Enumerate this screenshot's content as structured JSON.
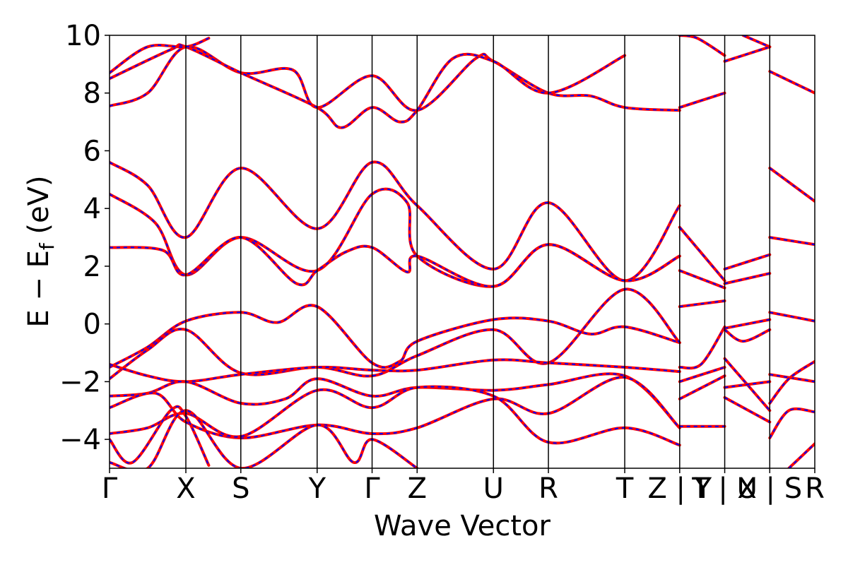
{
  "chart_data": {
    "type": "line",
    "title": "",
    "xlabel": "Wave Vector",
    "ylabel": {
      "base": "E − E",
      "sub": "f",
      "unit": " (eV)"
    },
    "ylim": [
      -5,
      10
    ],
    "yticks": [
      {
        "value": 10,
        "label": "10"
      },
      {
        "value": 8,
        "label": "8"
      },
      {
        "value": 6,
        "label": "6"
      },
      {
        "value": 4,
        "label": "4"
      },
      {
        "value": 2,
        "label": "2"
      },
      {
        "value": 0,
        "label": "0"
      },
      {
        "value": -2,
        "label": "−2"
      },
      {
        "value": -4,
        "label": "−4"
      }
    ],
    "kpoints": [
      {
        "pos": 0.0,
        "label": "Γ"
      },
      {
        "pos": 1.0,
        "label": "X"
      },
      {
        "pos": 1.72,
        "label": "S"
      },
      {
        "pos": 2.72,
        "label": "Y"
      },
      {
        "pos": 3.44,
        "label": "Γ"
      },
      {
        "pos": 4.03,
        "label": "Z"
      },
      {
        "pos": 5.03,
        "label": "U"
      },
      {
        "pos": 5.75,
        "label": "R"
      },
      {
        "pos": 6.75,
        "label": "T"
      },
      {
        "pos": 7.47,
        "label": "Z | Y"
      },
      {
        "pos": 8.06,
        "label": "T | U"
      },
      {
        "pos": 8.65,
        "label": "X | S"
      },
      {
        "pos": 9.24,
        "label": "R"
      }
    ],
    "xlim": [
      0,
      9.24
    ],
    "grid": false,
    "legend": "none",
    "series_style": {
      "color": "#ff0000",
      "overlay_color": "#0000ff",
      "overlay_dash": true
    },
    "bands": [
      {
        "x": [
          0,
          0.5,
          1.0,
          1.72,
          2.72,
          3.44,
          4.03,
          5.03,
          5.75,
          6.75,
          7.47
        ],
        "y": [
          5.6,
          4.8,
          3.0,
          5.4,
          3.3,
          5.6,
          4.1,
          1.9,
          4.2,
          1.5,
          4.1
        ]
      },
      {
        "x": [
          0,
          0.6,
          1.0,
          1.72,
          2.72,
          3.44,
          3.9,
          4.03,
          5.03,
          5.75,
          6.75,
          7.47
        ],
        "y": [
          4.5,
          3.5,
          1.7,
          3.0,
          1.85,
          4.5,
          4.2,
          2.35,
          1.3,
          2.75,
          1.5,
          2.35
        ]
      },
      {
        "x": [
          0,
          0.7,
          1.0,
          1.72,
          2.45,
          2.72,
          3.1,
          3.44,
          3.9,
          4.03,
          5.03,
          5.75,
          6.75,
          7.47
        ],
        "y": [
          2.65,
          2.55,
          1.7,
          3.0,
          1.4,
          1.85,
          2.5,
          2.65,
          1.8,
          2.35,
          1.3,
          2.75,
          1.5,
          2.35
        ]
      },
      {
        "x": [
          0,
          0.5,
          1.0,
          1.72,
          2.4,
          2.72,
          3.44,
          4.03,
          4.8,
          5.03,
          5.75,
          6.3,
          6.75,
          7.47
        ],
        "y": [
          7.55,
          8.0,
          9.6,
          8.7,
          8.8,
          7.5,
          8.6,
          7.4,
          9.2,
          9.1,
          8.0,
          7.9,
          7.5,
          7.4
        ]
      },
      {
        "x": [
          0,
          0.8,
          1.0,
          1.72,
          2.72,
          3.04,
          3.44,
          3.8,
          4.03,
          4.5,
          5.03,
          5.75,
          6.75
        ],
        "y": [
          8.5,
          9.5,
          9.6,
          8.7,
          7.5,
          6.8,
          7.5,
          7.0,
          7.4,
          9.2,
          9.1,
          8.0,
          9.3
        ]
      },
      {
        "x": [
          0,
          0.5,
          1.0,
          1.3
        ],
        "y": [
          8.7,
          9.6,
          9.6,
          9.9
        ]
      },
      {
        "x": [
          0,
          0.5,
          1.0,
          1.72,
          2.2,
          2.72,
          3.44,
          3.8,
          4.03,
          5.03,
          5.75,
          6.3,
          6.75,
          7.47
        ],
        "y": [
          -1.5,
          -0.8,
          0.1,
          0.4,
          0.05,
          0.6,
          -1.35,
          -1.3,
          -0.6,
          0.15,
          0.1,
          -0.35,
          -0.1,
          -0.65
        ]
      },
      {
        "x": [
          0,
          0.5,
          1.0,
          1.72,
          2.72,
          3.44,
          4.03,
          5.03,
          5.75,
          6.75,
          7.47
        ],
        "y": [
          -1.9,
          -0.9,
          -0.2,
          -1.7,
          -1.5,
          -1.8,
          -1.1,
          -0.2,
          -1.35,
          1.2,
          -0.65
        ]
      },
      {
        "x": [
          0,
          0.5,
          1.0,
          1.72,
          2.72,
          3.44,
          4.03,
          5.03,
          5.75,
          6.75,
          7.47
        ],
        "y": [
          -1.4,
          -1.8,
          -2.0,
          -1.75,
          -1.5,
          -1.6,
          -1.6,
          -1.25,
          -1.35,
          -1.5,
          -1.65
        ]
      },
      {
        "x": [
          0,
          0.5,
          1.0,
          1.72,
          2.3,
          2.72,
          3.44,
          4.03,
          5.03,
          5.75,
          6.75,
          7.47
        ],
        "y": [
          -2.5,
          -2.4,
          -2.0,
          -2.75,
          -2.6,
          -1.9,
          -2.5,
          -2.2,
          -2.3,
          -2.1,
          -1.8,
          -3.6
        ]
      },
      {
        "x": [
          0,
          0.6,
          1.0,
          1.72,
          2.72,
          3.44,
          4.03,
          5.03,
          5.75,
          6.75,
          7.47
        ],
        "y": [
          -2.9,
          -2.4,
          -3.4,
          -3.95,
          -3.5,
          -3.8,
          -3.6,
          -2.6,
          -3.1,
          -1.85,
          -3.6
        ]
      },
      {
        "x": [
          0,
          0.5,
          1.0,
          1.72,
          2.72,
          3.44,
          4.03,
          5.03,
          5.75,
          6.75,
          7.47
        ],
        "y": [
          -3.8,
          -3.6,
          -3.1,
          -3.9,
          -2.3,
          -2.9,
          -2.2,
          -2.5,
          -4.1,
          -3.6,
          -4.2
        ]
      },
      {
        "x": [
          0,
          0.3,
          0.8,
          1.0,
          1.3
        ],
        "y": [
          -4.0,
          -4.8,
          -3.0,
          -3.2,
          -4.9
        ]
      },
      {
        "x": [
          0,
          0.5,
          1.0,
          1.72,
          2.72,
          3.2,
          3.44,
          4.03
        ],
        "y": [
          -4.8,
          -5.0,
          -3.0,
          -5.0,
          -3.5,
          -4.8,
          -4.0,
          -5.0
        ]
      },
      {
        "x": [
          7.47,
          8.06
        ],
        "y": [
          3.35,
          1.5
        ]
      },
      {
        "x": [
          7.47,
          8.06
        ],
        "y": [
          1.85,
          1.25
        ]
      },
      {
        "x": [
          7.47,
          8.06
        ],
        "y": [
          0.6,
          0.8
        ]
      },
      {
        "x": [
          7.47,
          7.75,
          8.06
        ],
        "y": [
          -1.5,
          -1.4,
          -0.1
        ]
      },
      {
        "x": [
          7.47,
          8.06
        ],
        "y": [
          -2.0,
          -1.5
        ]
      },
      {
        "x": [
          7.47,
          8.06
        ],
        "y": [
          -2.6,
          -1.8
        ]
      },
      {
        "x": [
          7.47,
          8.06
        ],
        "y": [
          -3.55,
          -3.55
        ]
      },
      {
        "x": [
          7.47,
          7.7,
          8.06
        ],
        "y": [
          10.0,
          9.9,
          9.3
        ]
      },
      {
        "x": [
          7.47,
          8.06
        ],
        "y": [
          7.5,
          8.0
        ]
      },
      {
        "x": [
          8.06,
          8.65
        ],
        "y": [
          1.9,
          2.4
        ]
      },
      {
        "x": [
          8.06,
          8.65
        ],
        "y": [
          1.4,
          1.75
        ]
      },
      {
        "x": [
          8.06,
          8.65
        ],
        "y": [
          -0.15,
          0.15
        ]
      },
      {
        "x": [
          8.06,
          8.3,
          8.65
        ],
        "y": [
          -0.2,
          -0.6,
          -0.2
        ]
      },
      {
        "x": [
          8.06,
          8.65
        ],
        "y": [
          -1.2,
          -3.0
        ]
      },
      {
        "x": [
          8.06,
          8.65
        ],
        "y": [
          -2.2,
          -2.0
        ]
      },
      {
        "x": [
          8.06,
          8.65
        ],
        "y": [
          -2.55,
          -3.4
        ]
      },
      {
        "x": [
          8.06,
          8.65
        ],
        "y": [
          9.1,
          9.6
        ]
      },
      {
        "x": [
          8.3,
          8.65
        ],
        "y": [
          10.0,
          9.6
        ]
      },
      {
        "x": [
          8.65,
          9.24
        ],
        "y": [
          8.75,
          8.0
        ]
      },
      {
        "x": [
          8.65,
          9.24
        ],
        "y": [
          5.4,
          4.25
        ]
      },
      {
        "x": [
          8.65,
          9.24
        ],
        "y": [
          3.0,
          2.75
        ]
      },
      {
        "x": [
          8.65,
          9.24
        ],
        "y": [
          0.4,
          0.1
        ]
      },
      {
        "x": [
          8.65,
          9.24
        ],
        "y": [
          -1.75,
          -2.0
        ]
      },
      {
        "x": [
          8.65,
          8.9,
          9.24
        ],
        "y": [
          -2.75,
          -1.9,
          -1.3
        ]
      },
      {
        "x": [
          8.65,
          8.9,
          9.24
        ],
        "y": [
          -3.95,
          -3.0,
          -3.05
        ]
      },
      {
        "x": [
          8.9,
          9.24
        ],
        "y": [
          -5.0,
          -4.15
        ]
      }
    ]
  }
}
